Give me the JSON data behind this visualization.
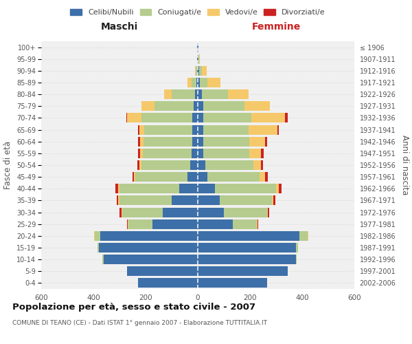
{
  "age_groups": [
    "0-4",
    "5-9",
    "10-14",
    "15-19",
    "20-24",
    "25-29",
    "30-34",
    "35-39",
    "40-44",
    "45-49",
    "50-54",
    "55-59",
    "60-64",
    "65-69",
    "70-74",
    "75-79",
    "80-84",
    "85-89",
    "90-94",
    "95-99",
    "100+"
  ],
  "birth_years": [
    "2002-2006",
    "1997-2001",
    "1992-1996",
    "1987-1991",
    "1982-1986",
    "1977-1981",
    "1972-1976",
    "1967-1971",
    "1962-1966",
    "1957-1961",
    "1952-1956",
    "1947-1951",
    "1942-1946",
    "1937-1941",
    "1932-1936",
    "1927-1931",
    "1922-1926",
    "1917-1921",
    "1912-1916",
    "1907-1911",
    "≤ 1906"
  ],
  "males": {
    "celibi": [
      230,
      270,
      360,
      380,
      375,
      175,
      135,
      100,
      70,
      40,
      30,
      25,
      22,
      20,
      20,
      15,
      10,
      5,
      3,
      2,
      2
    ],
    "coniugati": [
      0,
      0,
      5,
      5,
      20,
      90,
      155,
      200,
      230,
      200,
      185,
      185,
      185,
      185,
      195,
      150,
      90,
      20,
      5,
      0,
      0
    ],
    "vedovi": [
      0,
      0,
      0,
      0,
      3,
      3,
      3,
      5,
      5,
      5,
      8,
      10,
      15,
      20,
      55,
      50,
      30,
      15,
      3,
      0,
      0
    ],
    "divorziati": [
      0,
      0,
      0,
      0,
      0,
      3,
      8,
      5,
      10,
      5,
      8,
      10,
      8,
      5,
      3,
      0,
      0,
      0,
      0,
      0,
      0
    ]
  },
  "females": {
    "nubili": [
      265,
      345,
      375,
      375,
      390,
      135,
      100,
      85,
      65,
      38,
      28,
      22,
      22,
      20,
      20,
      20,
      15,
      8,
      5,
      2,
      2
    ],
    "coniugate": [
      0,
      0,
      5,
      8,
      30,
      90,
      165,
      200,
      235,
      200,
      185,
      175,
      175,
      175,
      185,
      160,
      100,
      30,
      10,
      3,
      0
    ],
    "vedove": [
      0,
      0,
      0,
      0,
      3,
      3,
      3,
      5,
      10,
      20,
      30,
      45,
      60,
      110,
      130,
      95,
      80,
      50,
      20,
      3,
      0
    ],
    "divorziate": [
      0,
      0,
      0,
      0,
      0,
      3,
      5,
      8,
      10,
      10,
      8,
      10,
      10,
      5,
      10,
      0,
      0,
      0,
      0,
      0,
      0
    ]
  },
  "colors": {
    "celibi_nubili": "#3d6fa8",
    "coniugati": "#b5cc8e",
    "vedovi": "#f5c96a",
    "divorziati": "#cc2222"
  },
  "xlim": 600,
  "title": "Popolazione per età, sesso e stato civile - 2007",
  "subtitle": "COMUNE DI TEANO (CE) - Dati ISTAT 1° gennaio 2007 - Elaborazione TUTTITALIA.IT",
  "ylabel_left": "Fasce di età",
  "ylabel_right": "Anni di nascita",
  "xlabel_left": "Maschi",
  "xlabel_right": "Femmine",
  "legend_labels": [
    "Celibi/Nubili",
    "Coniugati/e",
    "Vedovi/e",
    "Divorziati/e"
  ],
  "bg_color": "#f0f0f0"
}
